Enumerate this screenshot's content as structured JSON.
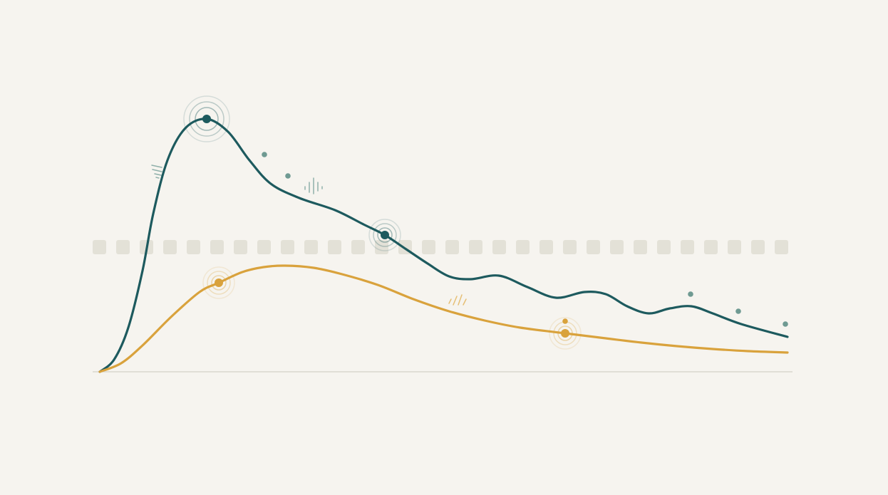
{
  "chart_data": {
    "type": "line",
    "xlim": [
      -1,
      97.2
    ],
    "ylim": [
      0,
      100
    ],
    "background": "#f6f4ef",
    "baseline_color": "#d8d6ce",
    "reference_line": {
      "value": 43.75,
      "color": "#e3e1d7"
    },
    "series": [
      {
        "color": "#1d5a5e",
        "marker_color": "#6f9a92",
        "x": [
          0,
          2,
          4,
          6,
          7.5,
          9.5,
          12,
          15,
          18,
          21,
          24,
          28,
          33,
          37,
          40,
          43,
          46,
          49,
          52,
          56,
          60,
          64,
          68,
          71,
          74,
          77,
          80,
          83,
          86,
          90,
          96.5
        ],
        "values": [
          0,
          4.25,
          15.5,
          35.5,
          55.5,
          74.25,
          85.5,
          88.75,
          84.25,
          74.25,
          66,
          61,
          56.75,
          51.75,
          48,
          43,
          38,
          33.5,
          32.5,
          33.75,
          29.75,
          26,
          28,
          27.25,
          23,
          20.5,
          22.25,
          23,
          20.5,
          16.75,
          12.25
        ],
        "highlights": [
          7,
          14
        ],
        "markers": {
          "x": [
            23.1,
            26.4,
            82.9,
            89.6,
            96.2
          ],
          "y": [
            76.25,
            68.75,
            27.25,
            21.25,
            16.75
          ]
        }
      },
      {
        "color": "#d9a23c",
        "marker_color": "#d9a23c",
        "x": [
          0,
          3,
          6,
          10,
          14,
          16.7,
          20,
          23,
          26,
          30,
          34,
          39,
          44,
          49,
          54,
          59,
          65.3,
          71,
          76,
          81,
          86,
          91,
          96.5
        ],
        "values": [
          0,
          3,
          9.25,
          19.25,
          28,
          31.25,
          35,
          36.75,
          37.25,
          36.5,
          34.25,
          30.5,
          25.5,
          21.25,
          18,
          15.5,
          13.5,
          11.75,
          10.25,
          9,
          8,
          7.25,
          6.75
        ],
        "highlights": [
          5,
          16
        ],
        "markers": {
          "x": [
            65.3
          ],
          "y": [
            17.75
          ]
        }
      }
    ]
  }
}
